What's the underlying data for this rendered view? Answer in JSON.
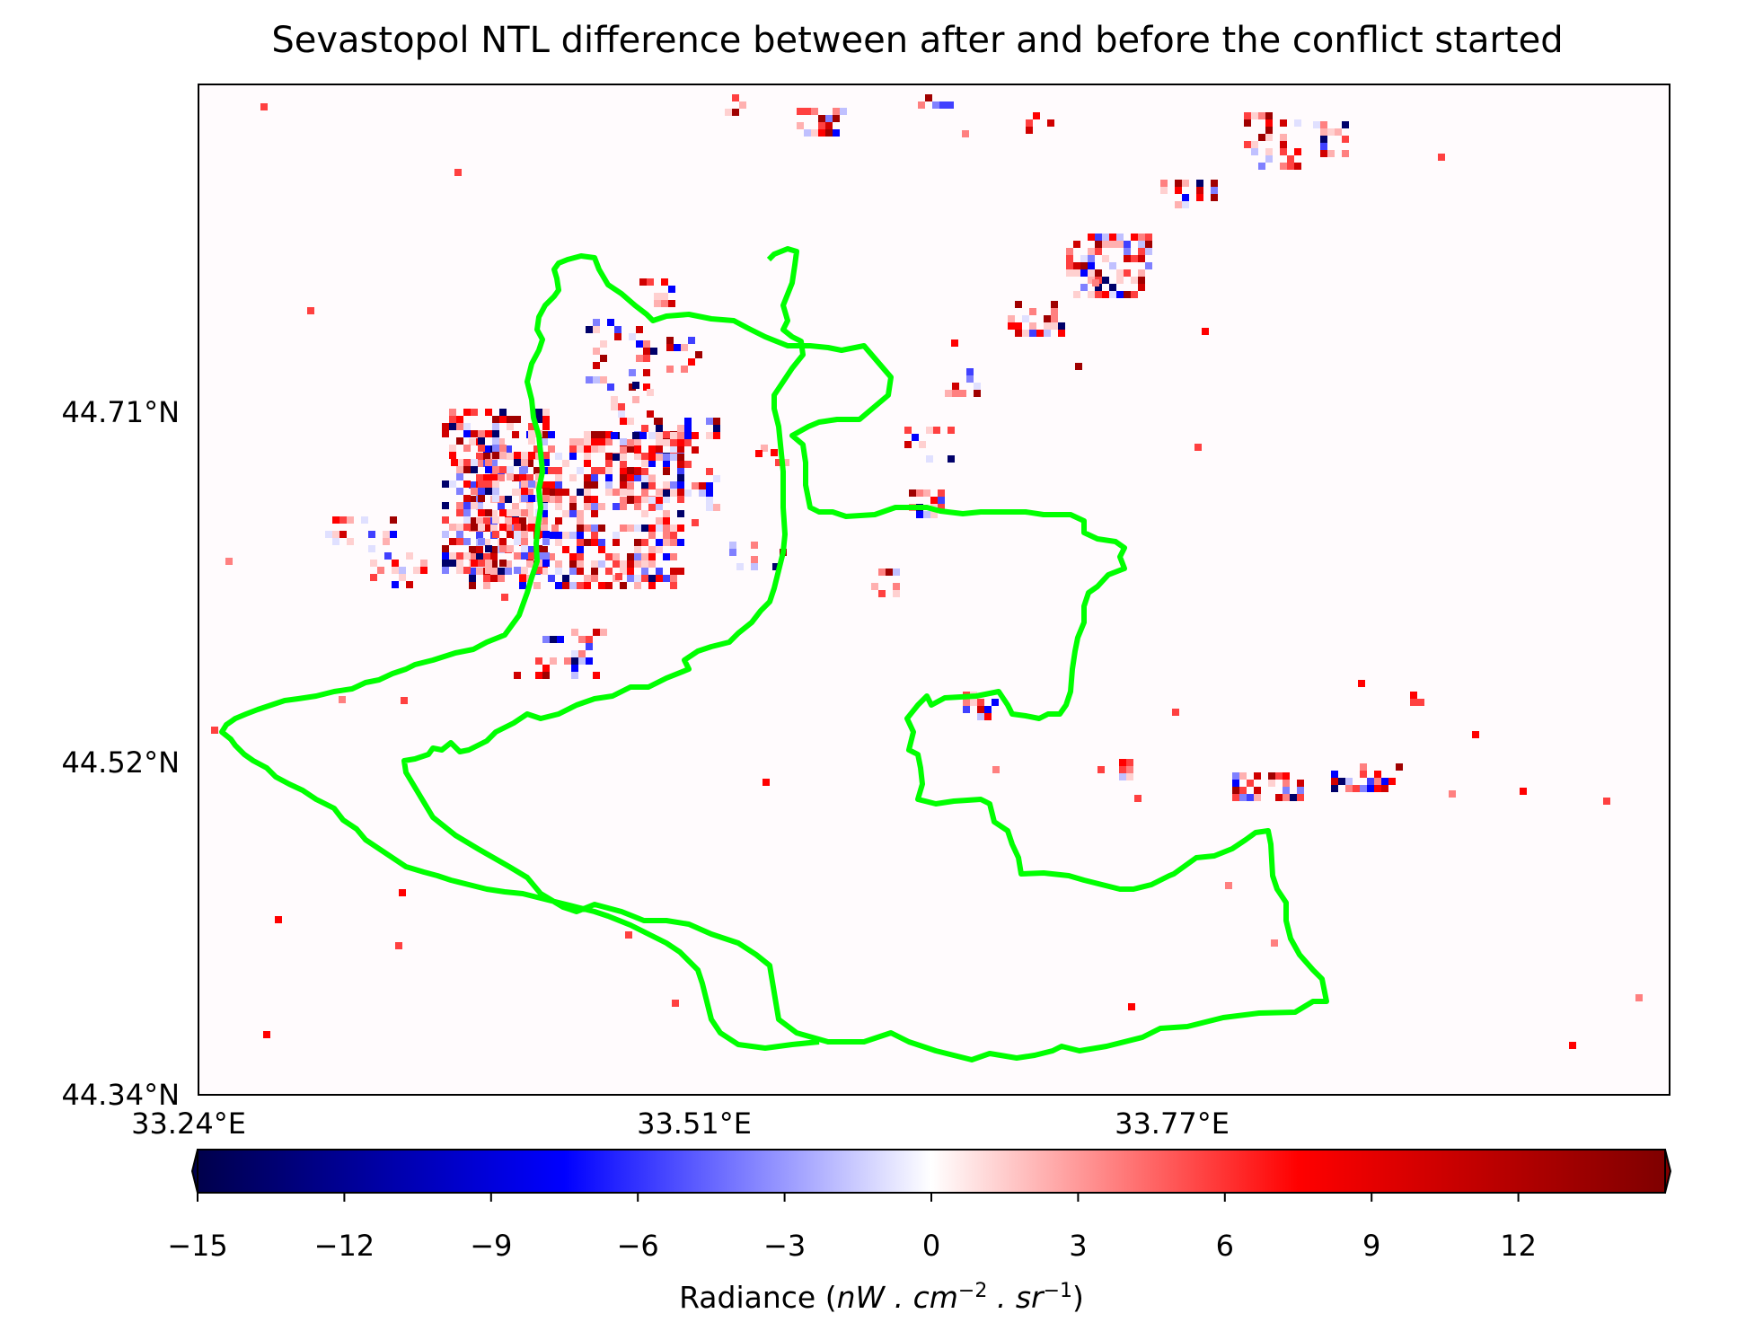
{
  "title": "Sevastopol NTL difference between after and before the conflict started",
  "y_axis_labels": [
    "44.71°N",
    "44.52°N",
    "44.34°N"
  ],
  "x_axis_labels": [
    "33.24°E",
    "33.51°E",
    "33.77°E"
  ],
  "colorbar": {
    "ticks": [
      "−15",
      "−12",
      "−9",
      "−6",
      "−3",
      "0",
      "3",
      "6",
      "9",
      "12"
    ],
    "label_prefix": "Radiance (",
    "label_units": "nW . cm",
    "label_exp1": "−2",
    "label_mid": " . sr",
    "label_exp2": "−1",
    "label_suffix": ")",
    "range": [
      -15,
      15
    ],
    "colors": [
      "#00004c",
      "#0000ff",
      "#ffffff",
      "#ff0000",
      "#7f0000"
    ]
  },
  "boundary_color": "#00ff00",
  "colormap": "seismic"
}
